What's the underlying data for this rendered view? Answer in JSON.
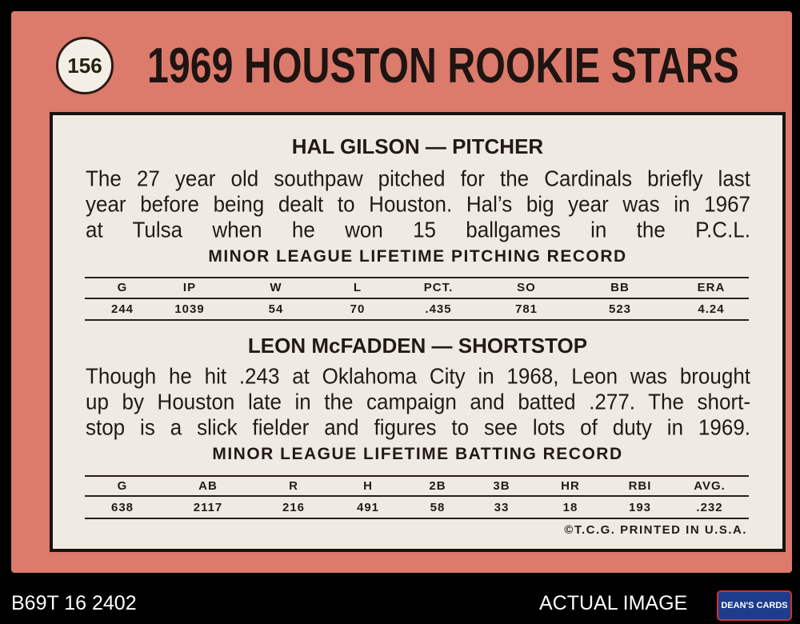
{
  "card_number": "156",
  "title": "1969 HOUSTON ROOKIE STARS",
  "players": [
    {
      "heading": "HAL GILSON — PITCHER",
      "bio": [
        "The 27 year old southpaw pitched for the Cardinals briefly last",
        "year before being dealt to Houston. Hal’s big year was in 1967",
        "at Tulsa when he won 15 ballgames in the P.C.L."
      ],
      "record_title": "MINOR LEAGUE LIFETIME PITCHING RECORD",
      "table": {
        "columns": [
          "G",
          "IP",
          "W",
          "L",
          "PCT.",
          "SO",
          "BB",
          "ERA"
        ],
        "rows": [
          [
            "244",
            "1039",
            "54",
            "70",
            ".435",
            "781",
            "523",
            "4.24"
          ]
        ]
      }
    },
    {
      "heading": "LEON McFADDEN — SHORTSTOP",
      "bio": [
        "Though he hit .243 at Oklahoma City in 1968, Leon was brought",
        "up by Houston late in the campaign and batted .277. The short-",
        "stop is a slick fielder and figures to see lots of duty in 1969."
      ],
      "record_title": "MINOR LEAGUE LIFETIME BATTING RECORD",
      "table": {
        "columns": [
          "G",
          "AB",
          "R",
          "H",
          "2B",
          "3B",
          "HR",
          "RBI",
          "AVG."
        ],
        "rows": [
          [
            "638",
            "2117",
            "216",
            "491",
            "58",
            "33",
            "18",
            "193",
            ".232"
          ]
        ]
      }
    }
  ],
  "copyright": "©T.C.G. PRINTED IN U.S.A.",
  "footer": {
    "id": "B69T 16 2402",
    "label": "ACTUAL IMAGE",
    "logo": "DEAN'S CARDS"
  }
}
